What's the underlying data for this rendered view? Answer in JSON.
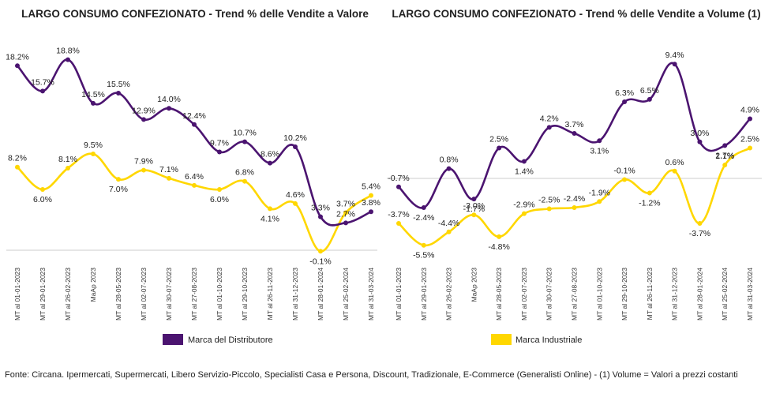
{
  "colors": {
    "distributore": "#4B1470",
    "industriale": "#FFD700",
    "zero_line": "#cccccc"
  },
  "categories": [
    "MT al 01-01-2023",
    "MT al 29-01-2023",
    "MT al 26-02-2023",
    "MaAp 2023",
    "MT al 28-05-2023",
    "MT al 02-07-2023",
    "MT al 30-07-2023",
    "MT al 27-08-2023",
    "MT al 01-10-2023",
    "MT al 29-10-2023",
    "MT al 26-11-2023",
    "MT al 31-12-2023",
    "MT al 28-01-2024",
    "MT al 25-02-2024",
    "MT al 31-03-2024"
  ],
  "legend": {
    "distributore": "Marca del Distributore",
    "industriale": "Marca Industriale"
  },
  "footer": "Fonte: Circana. Ipermercati, Supermercati, Libero Servizio-Piccolo, Specialisti Casa e Persona, Discount, Tradizionale, E-Commerce (Generalisti Online) - (1) Volume = Valori a prezzi costanti",
  "chart_data": [
    {
      "type": "line",
      "title": "LARGO CONSUMO CONFEZIONATO - Trend % delle Vendite a Valore",
      "series": [
        {
          "name": "Marca del Distributore",
          "values": [
            18.2,
            15.7,
            18.8,
            14.5,
            15.5,
            12.9,
            14.0,
            12.4,
            9.7,
            10.7,
            8.6,
            10.2,
            3.3,
            2.7,
            3.8
          ],
          "labels": [
            "18.2%",
            "15.7%",
            "18.8%",
            "14.5%",
            "15.5%",
            "12.9%",
            "14.0%",
            "12.4%",
            "9.7%",
            "10.7%",
            "8.6%",
            "10.2%",
            "3.3%",
            "2.7%",
            "3.8%"
          ]
        },
        {
          "name": "Marca Industriale",
          "values": [
            8.2,
            6.0,
            8.1,
            9.5,
            7.0,
            7.9,
            7.1,
            6.4,
            6.0,
            6.8,
            4.1,
            4.6,
            -0.1,
            3.7,
            5.4
          ],
          "labels": [
            "8.2%",
            "6.0%",
            "8.1%",
            "9.5%",
            "7.0%",
            "7.9%",
            "7.1%",
            "6.4%",
            "6.0%",
            "6.8%",
            "4.1%",
            "4.6%",
            "-0.1%",
            "3.7%",
            "5.4%"
          ]
        }
      ]
    },
    {
      "type": "line",
      "title": "LARGO CONSUMO CONFEZIONATO - Trend % delle Vendite a Volume (1)",
      "series": [
        {
          "name": "Marca del Distributore",
          "values": [
            -0.7,
            -2.4,
            0.8,
            -1.7,
            2.5,
            1.4,
            4.2,
            3.7,
            3.1,
            6.3,
            6.5,
            9.4,
            3.0,
            2.7,
            4.9
          ],
          "labels": [
            "-0.7%",
            "-2.4%",
            "0.8%",
            "-1.7%",
            "2.5%",
            "1.4%",
            "4.2%",
            "3.7%",
            "3.1%",
            "6.3%",
            "6.5%",
            "9.4%",
            "3.0%",
            "2.7%",
            "4.9%"
          ]
        },
        {
          "name": "Marca Industriale",
          "values": [
            -3.7,
            -5.5,
            -4.4,
            -3.0,
            -4.8,
            -2.9,
            -2.5,
            -2.4,
            -1.9,
            -0.1,
            -1.2,
            0.6,
            -3.7,
            1.1,
            2.5
          ],
          "labels": [
            "-3.7%",
            "-5.5%",
            "-4.4%",
            "-3.0%",
            "-4.8%",
            "-2.9%",
            "-2.5%",
            "-2.4%",
            "-1.9%",
            "-0.1%",
            "-1.2%",
            "0.6%",
            "-3.7%",
            "1.1%",
            "2.5%"
          ]
        }
      ]
    }
  ]
}
